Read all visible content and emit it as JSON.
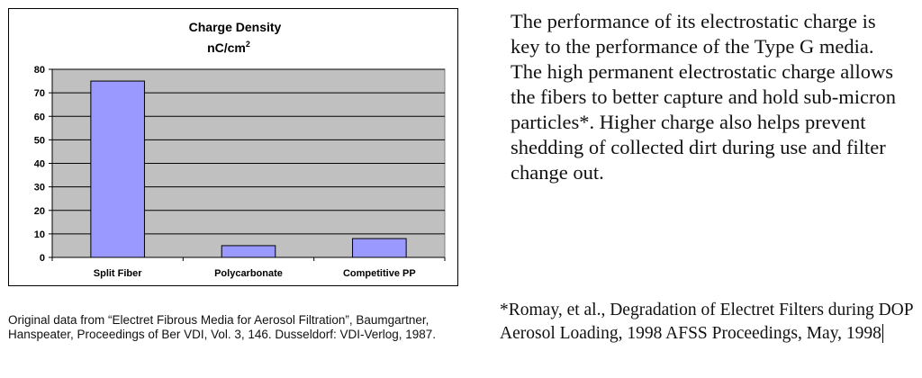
{
  "chart_data": {
    "type": "bar",
    "title": "Charge Density",
    "subtitle_base": "nC/cm",
    "subtitle_exp": "2",
    "categories": [
      "Split Fiber",
      "Polycarbonate",
      "Competitive PP"
    ],
    "values": [
      75,
      5,
      8
    ],
    "ylim": [
      0,
      80
    ],
    "yticks": [
      "0",
      "10",
      "20",
      "30",
      "40",
      "50",
      "60",
      "70",
      "80"
    ],
    "grid": true,
    "bar_color": "#9999ff",
    "plot_bg": "#c0c0c0"
  },
  "paragraph": "The performance of its electrostatic charge is key to the performance of the Type G media. The high permanent electrostatic charge allows the fibers to better capture and hold sub-micron particles*. Higher charge also helps prevent shedding of collected dirt during use and filter change out.",
  "source_note": "Original data from “Electret Fibrous Media for Aerosol Filtration”, Baumgartner, Hanspeater, Proceedings of Ber VDI, Vol. 3, 146. Dusseldorf: VDI-Verlog, 1987.",
  "citation": "*Romay, et al., Degradation of Electret Filters during DOP Aerosol Loading, 1998 AFSS Proceedings, May, 1998"
}
